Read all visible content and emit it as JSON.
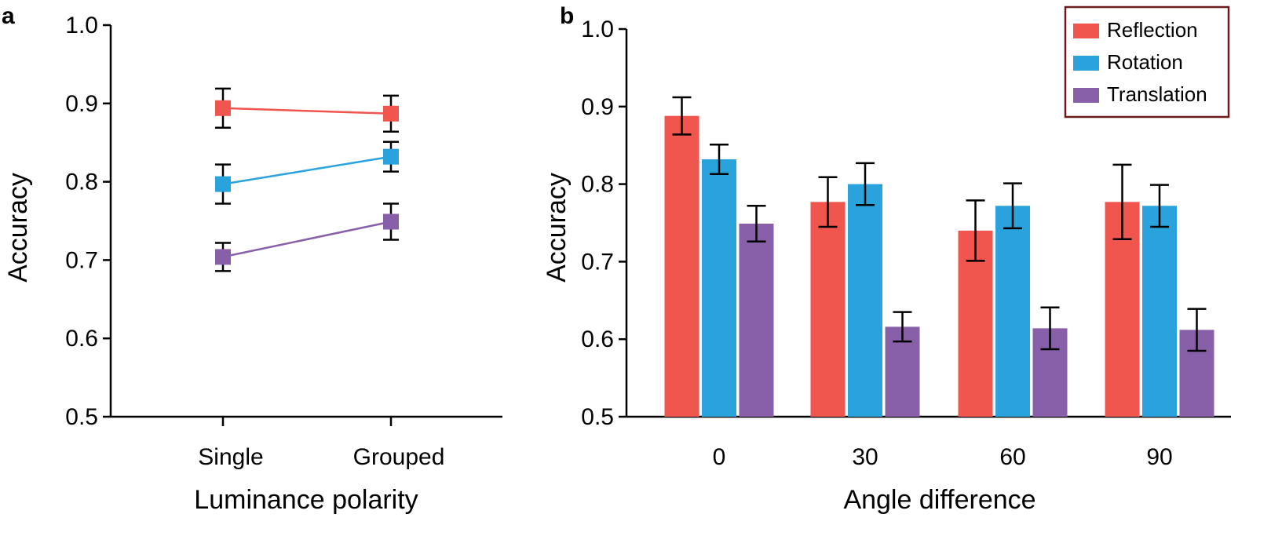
{
  "panels": {
    "a": {
      "letter": "a"
    },
    "b": {
      "letter": "b"
    }
  },
  "colors": {
    "Reflection": "#f0564e",
    "Rotation": "#2aa3dd",
    "Translation": "#8860aa",
    "legend_border": "#6b1a1a"
  },
  "chart_data": [
    {
      "type": "line",
      "panel": "a",
      "xlabel": "Luminance polarity",
      "ylabel": "Accuracy",
      "categories": [
        "Single",
        "Grouped"
      ],
      "ylim": [
        0.5,
        1.0
      ],
      "yticks": [
        "0.5",
        "0.6",
        "0.7",
        "0.8",
        "0.9",
        "1.0"
      ],
      "series": [
        {
          "key": "Reflection",
          "values": [
            0.894,
            0.887
          ],
          "errors": [
            0.025,
            0.023
          ]
        },
        {
          "key": "Rotation",
          "values": [
            0.797,
            0.832
          ],
          "errors": [
            0.025,
            0.019
          ]
        },
        {
          "key": "Translation",
          "values": [
            0.704,
            0.749
          ],
          "errors": [
            0.018,
            0.023
          ]
        }
      ]
    },
    {
      "type": "bar",
      "panel": "b",
      "xlabel": "Angle difference",
      "ylabel": "Accuracy",
      "categories": [
        "0",
        "30",
        "60",
        "90"
      ],
      "ylim": [
        0.5,
        1.0
      ],
      "yticks": [
        "0.5",
        "0.6",
        "0.7",
        "0.8",
        "0.9",
        "1.0"
      ],
      "legend_position": "top-right",
      "series": [
        {
          "name": "Reflection",
          "values": [
            0.888,
            0.777,
            0.74,
            0.777
          ],
          "errors": [
            0.024,
            0.032,
            0.039,
            0.048
          ]
        },
        {
          "name": "Rotation",
          "values": [
            0.832,
            0.8,
            0.772,
            0.772
          ],
          "errors": [
            0.019,
            0.027,
            0.029,
            0.027
          ]
        },
        {
          "name": "Translation",
          "values": [
            0.749,
            0.616,
            0.614,
            0.612
          ],
          "errors": [
            0.023,
            0.019,
            0.027,
            0.027
          ]
        }
      ]
    }
  ]
}
